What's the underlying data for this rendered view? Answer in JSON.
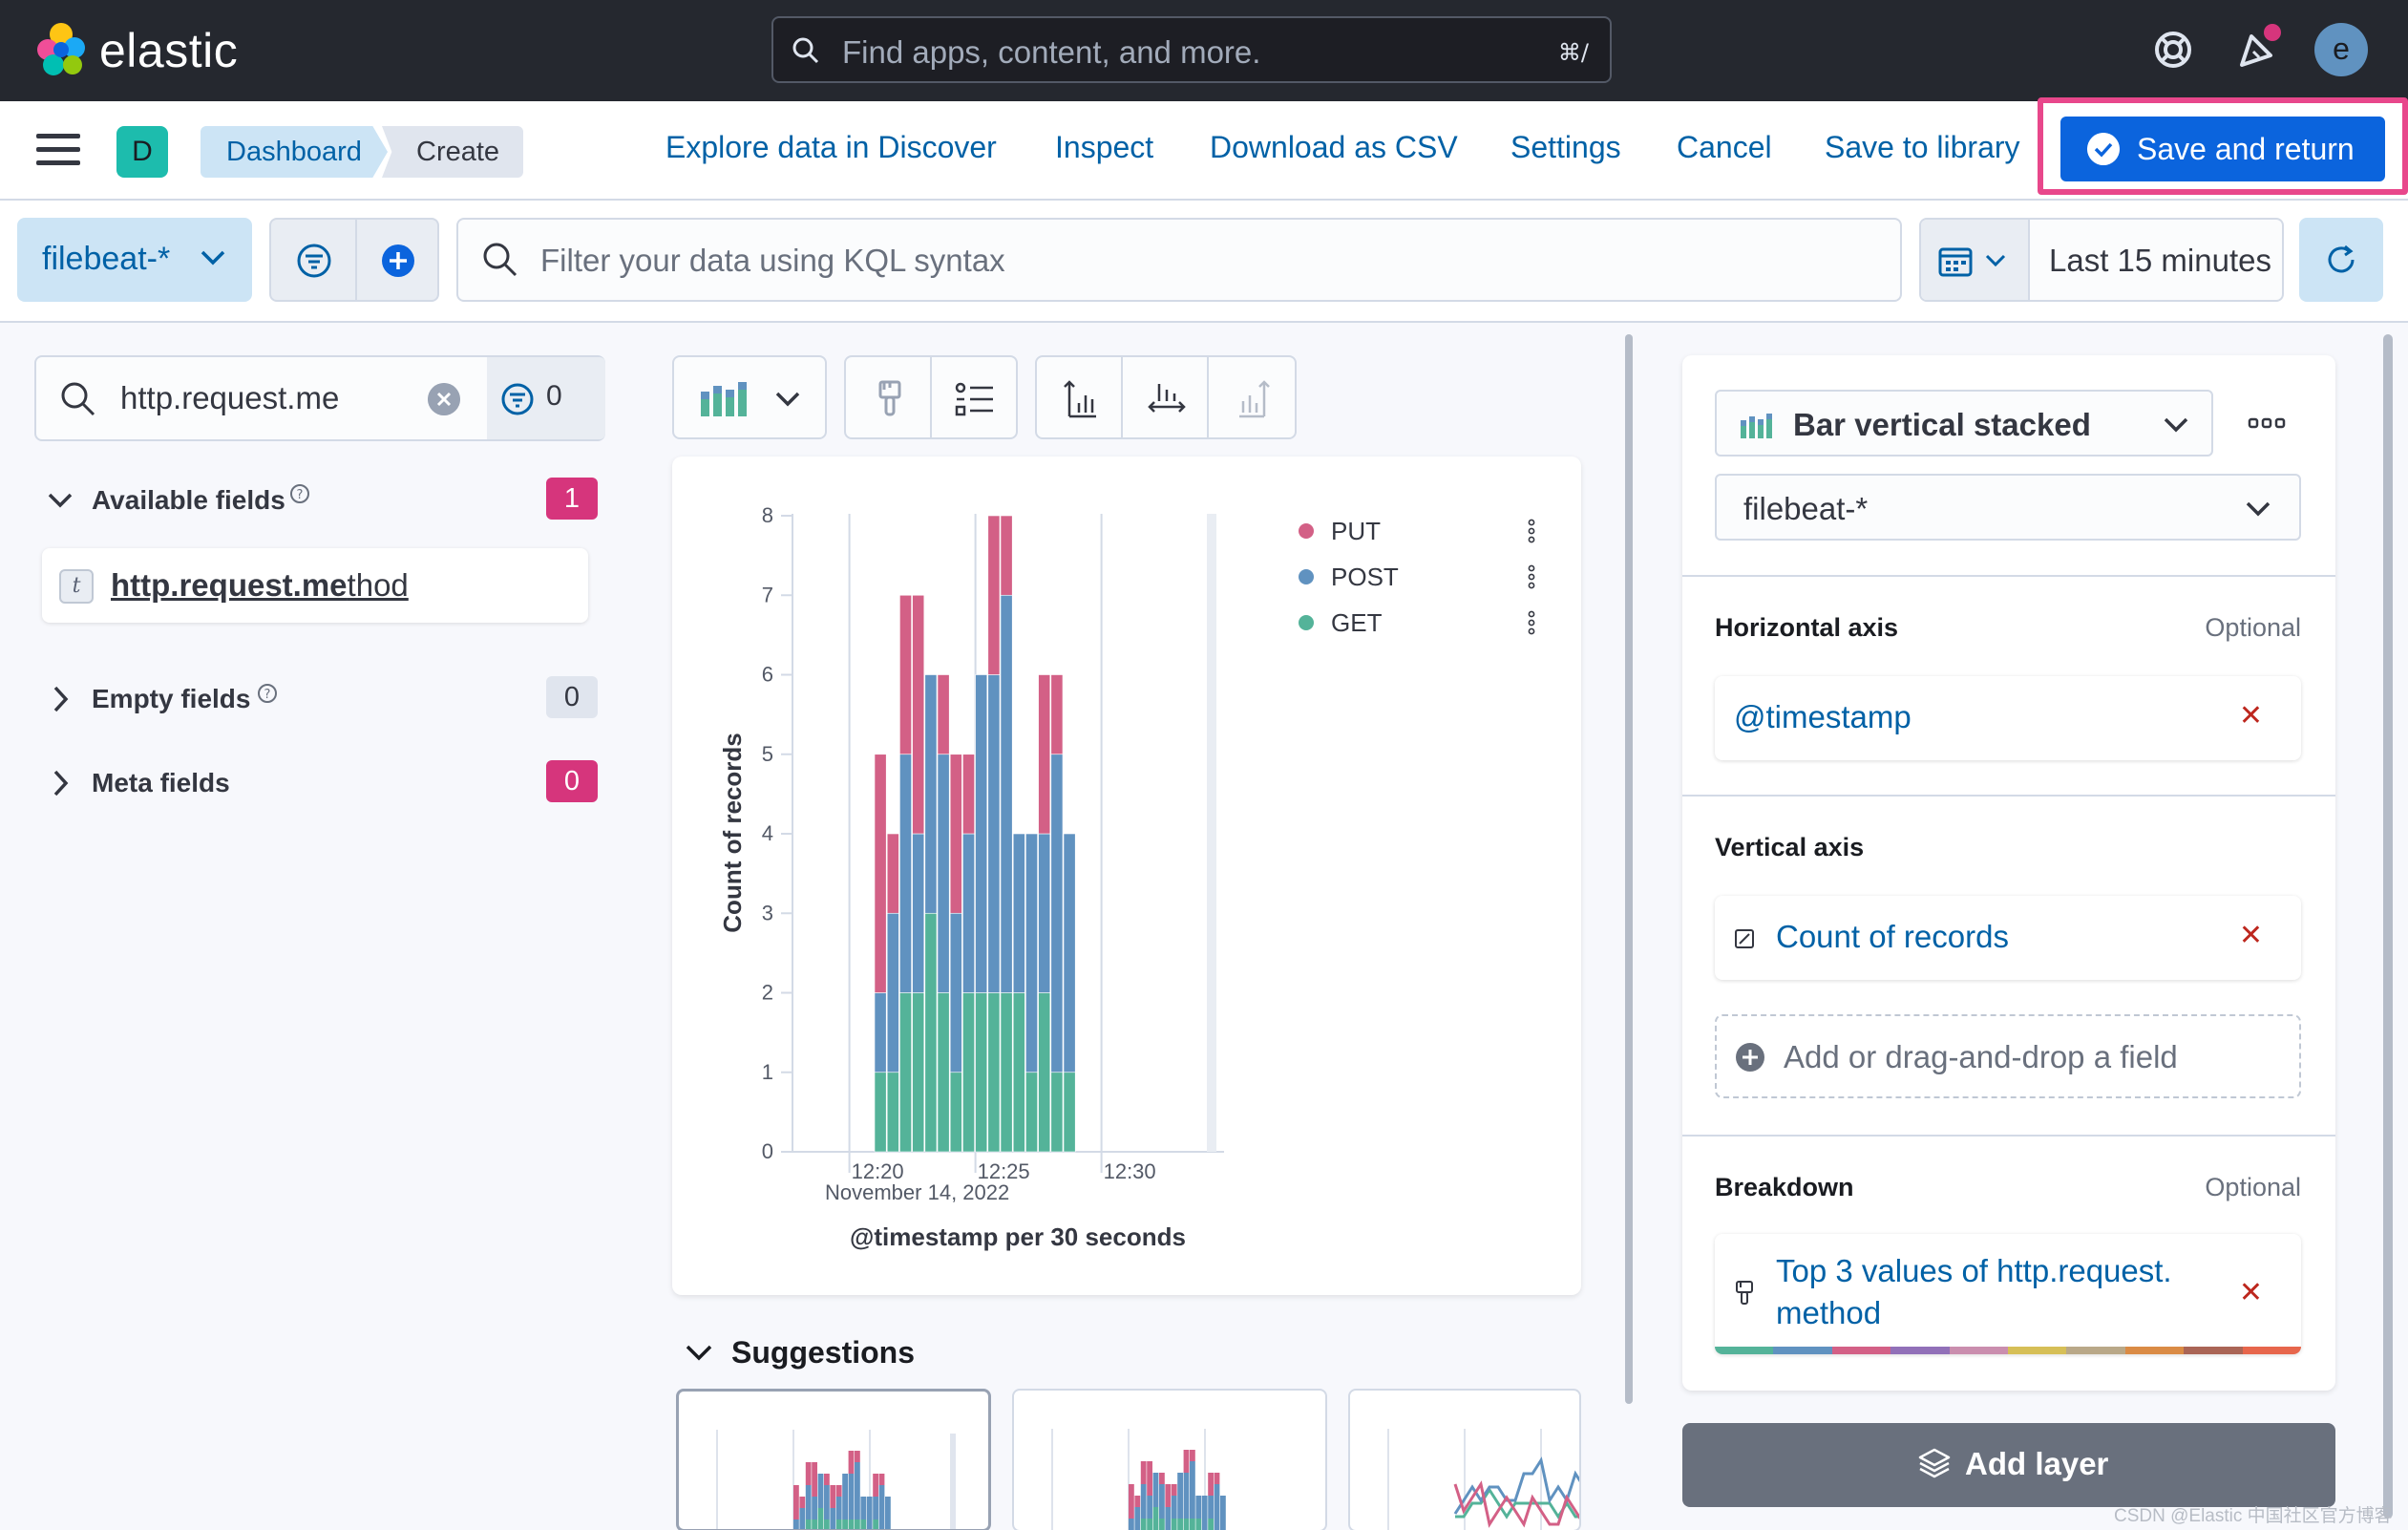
{
  "brand": {
    "name": "elastic"
  },
  "global_search": {
    "placeholder": "Find apps, content, and more.",
    "shortcut": "⌘/"
  },
  "top_icons": [
    "help-icon",
    "newsfeed-icon"
  ],
  "user": {
    "avatar_initial": "e",
    "avatar_color": "#6092c0"
  },
  "space": {
    "initial": "D",
    "color": "#1dbcad"
  },
  "breadcrumbs": [
    "Dashboard",
    "Create"
  ],
  "nav_links": [
    "Explore data in Discover",
    "Inspect",
    "Download as CSV",
    "Settings",
    "Cancel",
    "Save to library"
  ],
  "save_button": {
    "label": "Save and return",
    "color": "#0b64dd"
  },
  "query_bar": {
    "data_view": "filebeat-*",
    "kql_placeholder": "Filter your data using KQL syntax",
    "time_range": "Last 15 minutes"
  },
  "field_list": {
    "search_value": "http.request.me",
    "filter_count": "0",
    "available": {
      "label": "Available fields",
      "count": "1"
    },
    "field_token": "t",
    "field_name_match": "http.request.me",
    "field_name_rest": "thod",
    "empty": {
      "label": "Empty fields",
      "count": "0"
    },
    "meta": {
      "label": "Meta fields",
      "count": "0"
    }
  },
  "chart_data": {
    "type": "bar",
    "stacked": true,
    "categories": [
      "12:21:00",
      "12:21:30",
      "12:22:00",
      "12:22:30",
      "12:23:00",
      "12:23:30",
      "12:24:00",
      "12:24:30",
      "12:25:00",
      "12:25:30",
      "12:26:00",
      "12:26:30",
      "12:27:00",
      "12:27:30",
      "12:28:00",
      "12:28:30"
    ],
    "series": [
      {
        "name": "GET",
        "color": "#54b399",
        "values": [
          1,
          1,
          2,
          2,
          3,
          2,
          1,
          2,
          2,
          2,
          2,
          2,
          1,
          2,
          1,
          1
        ]
      },
      {
        "name": "POST",
        "color": "#6092c0",
        "values": [
          1,
          2,
          3,
          2,
          3,
          3,
          2,
          2,
          4,
          4,
          5,
          2,
          3,
          2,
          4,
          3
        ]
      },
      {
        "name": "PUT",
        "color": "#d36086",
        "values": [
          3,
          1,
          2,
          3,
          0,
          1,
          2,
          1,
          0,
          2,
          1,
          0,
          0,
          2,
          1,
          0
        ]
      }
    ],
    "ylim": [
      0,
      8
    ],
    "y_ticks": [
      "0",
      "1",
      "2",
      "3",
      "4",
      "5",
      "6",
      "7",
      "8"
    ],
    "x_ticks": [
      "12:20",
      "12:25",
      "12:30"
    ],
    "x_date": "November 14, 2022",
    "xlabel": "@timestamp per 30 seconds",
    "ylabel": "Count of records",
    "legend_position": "top-right",
    "legend": [
      "PUT",
      "POST",
      "GET"
    ]
  },
  "suggestions": {
    "label": "Suggestions"
  },
  "config": {
    "chart_type": "Bar vertical stacked",
    "data_view": "filebeat-*",
    "horizontal_axis": {
      "label": "Horizontal axis",
      "optional": "Optional",
      "field": "@timestamp"
    },
    "vertical_axis": {
      "label": "Vertical axis",
      "field": "Count of records",
      "add_placeholder": "Add or drag-and-drop a field"
    },
    "breakdown": {
      "label": "Breakdown",
      "optional": "Optional",
      "field_line1": "Top 3 values of http.request.",
      "field_line2": "method"
    },
    "add_layer": "Add layer"
  },
  "palette": [
    "#54b399",
    "#6092c0",
    "#d36086",
    "#9170b8",
    "#ca8eae",
    "#d6bf57",
    "#b9a888",
    "#da8b45",
    "#aa6556",
    "#e7664c"
  ],
  "watermark": "CSDN @Elastic 中国社区官方博客"
}
